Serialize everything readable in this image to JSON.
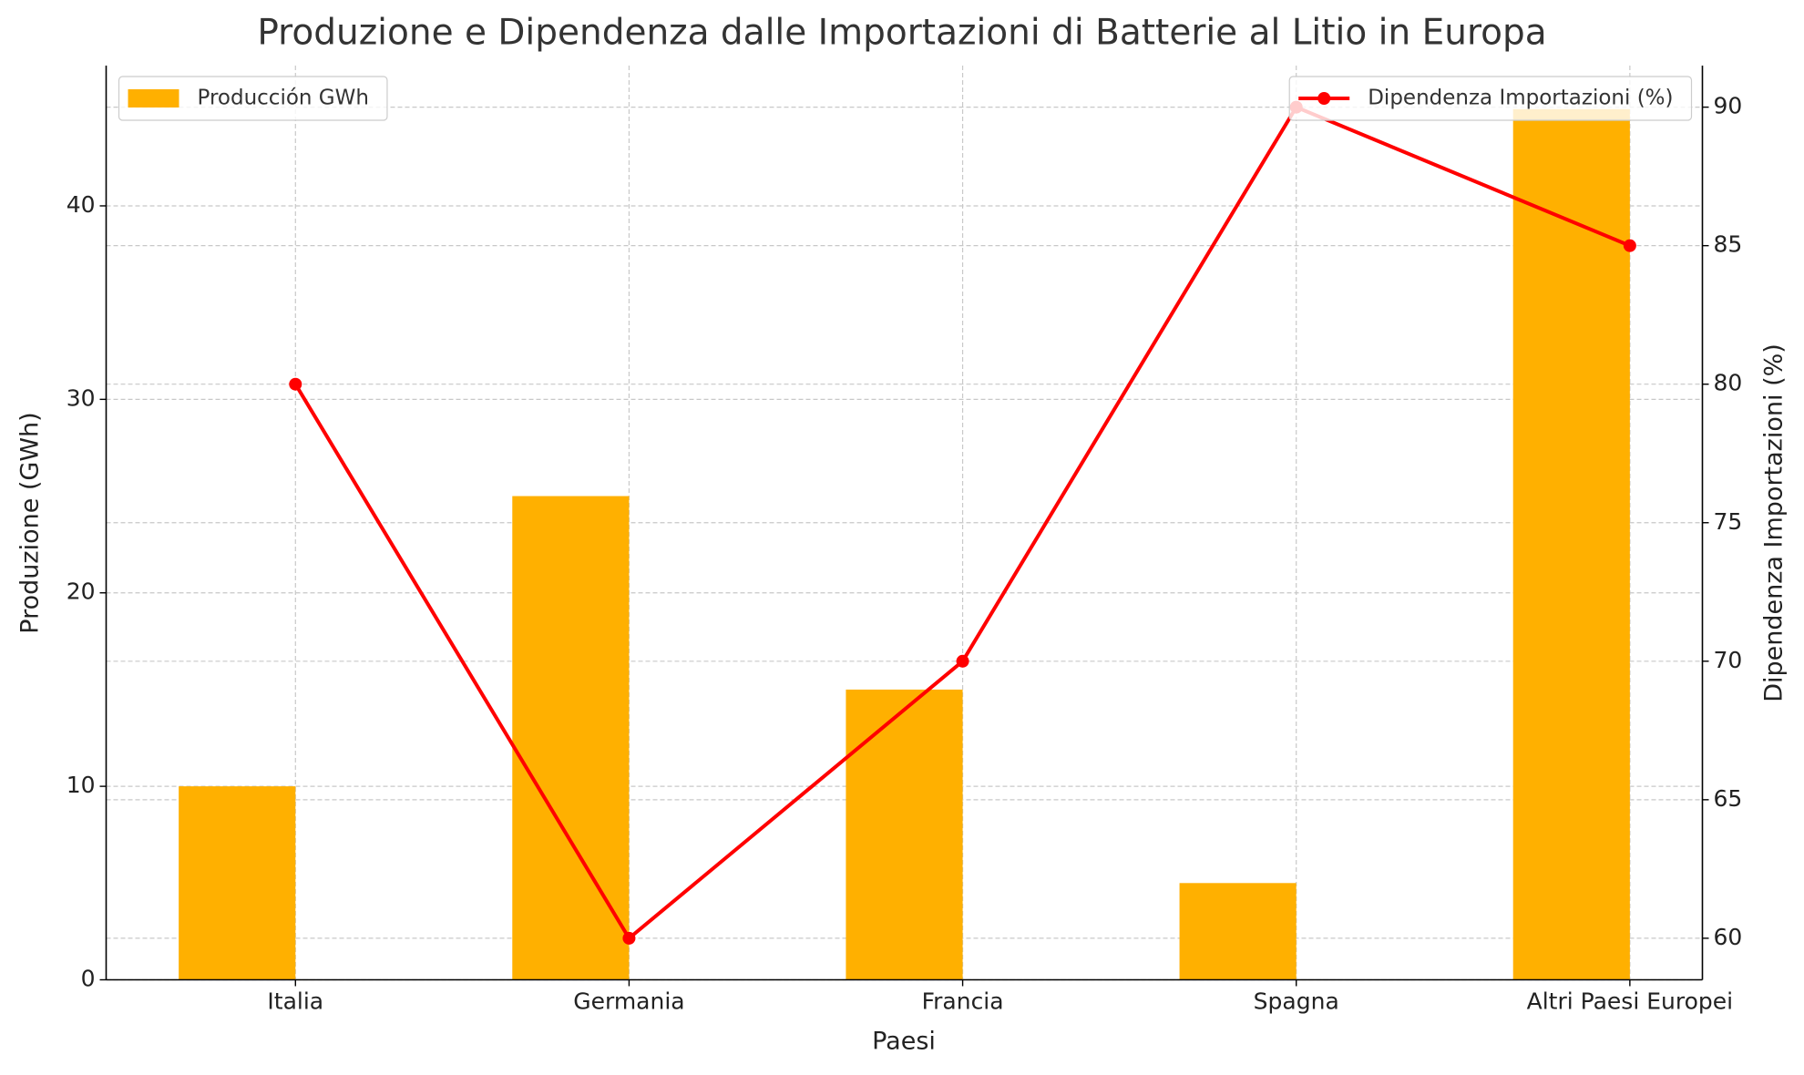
{
  "chart_data": {
    "type": "combo",
    "title": "Produzione e Dipendenza dalle Importazioni di Batterie al Litio in Europa",
    "x_label": "Paesi",
    "y_label": "Produzione (GWh)",
    "y2_label": "Dipendenza Importazioni (%)",
    "categories": [
      "Italia",
      "Germania",
      "Francia",
      "Spagna",
      "Altri Paesi Europei"
    ],
    "series": [
      {
        "name": "Producción GWh",
        "type": "bar",
        "color": "#ffb000",
        "values": [
          10,
          25,
          15,
          5,
          45
        ],
        "legend": "upper left"
      },
      {
        "name": "Dipendenza Importazioni (%)",
        "type": "line",
        "color": "#ff0000",
        "axis": "y2",
        "values": [
          80,
          60,
          70,
          90,
          85
        ],
        "legend": "upper right"
      }
    ],
    "ylim": [
      0,
      47.25
    ],
    "yticks": [
      0,
      10,
      20,
      30,
      40
    ],
    "y2lim": [
      58.5,
      91.5
    ],
    "y2ticks": [
      60,
      65,
      70,
      75,
      80,
      85,
      90
    ],
    "grid": true
  }
}
